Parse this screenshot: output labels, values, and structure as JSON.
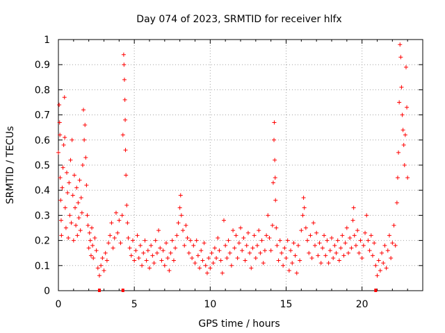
{
  "chart_data": {
    "type": "scatter",
    "title": "Day 074 of 2023, SRMTID for receiver hlfx",
    "xlabel": "GPS time / hours",
    "ylabel": "SRMTID / TECUs",
    "xlim": [
      0,
      24
    ],
    "ylim": [
      0,
      1
    ],
    "xticks": [
      0,
      5,
      10,
      15,
      20
    ],
    "xtick_labels": [
      "0",
      "5",
      "10",
      "15",
      "20"
    ],
    "yticks": [
      0,
      0.1,
      0.2,
      0.3,
      0.4,
      0.5,
      0.6,
      0.7,
      0.8,
      0.9,
      1
    ],
    "ytick_labels": [
      "0",
      "0.1",
      "0.2",
      "0.3",
      "0.4",
      "0.5",
      "0.6",
      "0.7",
      "0.8",
      "0.9",
      "1"
    ],
    "grid": true,
    "marker": "+",
    "color": "#ff0000",
    "series": [
      {
        "name": "SRMTID",
        "points": [
          [
            0.0,
            0.55
          ],
          [
            0.05,
            0.74
          ],
          [
            0.08,
            0.67
          ],
          [
            0.1,
            0.62
          ],
          [
            0.12,
            0.45
          ],
          [
            0.15,
            0.36
          ],
          [
            0.18,
            0.28
          ],
          [
            0.2,
            0.22
          ],
          [
            0.25,
            0.41
          ],
          [
            0.3,
            0.49
          ],
          [
            0.35,
            0.58
          ],
          [
            0.4,
            0.77
          ],
          [
            0.42,
            0.61
          ],
          [
            0.45,
            0.33
          ],
          [
            0.5,
            0.25
          ],
          [
            0.55,
            0.47
          ],
          [
            0.6,
            0.39
          ],
          [
            0.65,
            0.21
          ],
          [
            0.7,
            0.43
          ],
          [
            0.75,
            0.3
          ],
          [
            0.8,
            0.52
          ],
          [
            0.85,
            0.27
          ],
          [
            0.9,
            0.6
          ],
          [
            0.95,
            0.38
          ],
          [
            1.0,
            0.2
          ],
          [
            1.05,
            0.46
          ],
          [
            1.1,
            0.33
          ],
          [
            1.15,
            0.26
          ],
          [
            1.2,
            0.41
          ],
          [
            1.25,
            0.22
          ],
          [
            1.3,
            0.35
          ],
          [
            1.35,
            0.29
          ],
          [
            1.4,
            0.44
          ],
          [
            1.45,
            0.24
          ],
          [
            1.5,
            0.37
          ],
          [
            1.55,
            0.31
          ],
          [
            1.6,
            0.5
          ],
          [
            1.65,
            0.72
          ],
          [
            1.7,
            0.6
          ],
          [
            1.75,
            0.66
          ],
          [
            1.8,
            0.53
          ],
          [
            1.85,
            0.42
          ],
          [
            1.9,
            0.3
          ],
          [
            1.95,
            0.26
          ],
          [
            2.0,
            0.17
          ],
          [
            2.05,
            0.23
          ],
          [
            2.1,
            0.2
          ],
          [
            2.15,
            0.14
          ],
          [
            2.2,
            0.25
          ],
          [
            2.25,
            0.18
          ],
          [
            2.3,
            0.13
          ],
          [
            2.4,
            0.21
          ],
          [
            2.5,
            0.16
          ],
          [
            2.6,
            0.09
          ],
          [
            2.7,
            0.06
          ],
          [
            2.8,
            0.1
          ],
          [
            2.9,
            0.13
          ],
          [
            3.0,
            0.08
          ],
          [
            3.1,
            0.15
          ],
          [
            3.2,
            0.12
          ],
          [
            3.3,
            0.19
          ],
          [
            3.4,
            0.22
          ],
          [
            3.5,
            0.27
          ],
          [
            3.6,
            0.17
          ],
          [
            3.7,
            0.21
          ],
          [
            3.8,
            0.31
          ],
          [
            3.9,
            0.23
          ],
          [
            4.0,
            0.28
          ],
          [
            4.1,
            0.19
          ],
          [
            4.2,
            0.3
          ],
          [
            4.25,
            0.62
          ],
          [
            4.3,
            0.94
          ],
          [
            4.32,
            0.9
          ],
          [
            4.35,
            0.84
          ],
          [
            4.38,
            0.76
          ],
          [
            4.4,
            0.68
          ],
          [
            4.42,
            0.56
          ],
          [
            4.45,
            0.46
          ],
          [
            4.5,
            0.34
          ],
          [
            4.55,
            0.27
          ],
          [
            4.6,
            0.21
          ],
          [
            4.7,
            0.17
          ],
          [
            4.8,
            0.14
          ],
          [
            4.9,
            0.2
          ],
          [
            5.0,
            0.12
          ],
          [
            5.1,
            0.16
          ],
          [
            5.2,
            0.22
          ],
          [
            5.3,
            0.13
          ],
          [
            5.4,
            0.18
          ],
          [
            5.5,
            0.1
          ],
          [
            5.6,
            0.15
          ],
          [
            5.7,
            0.2
          ],
          [
            5.8,
            0.12
          ],
          [
            5.9,
            0.16
          ],
          [
            6.0,
            0.09
          ],
          [
            6.1,
            0.18
          ],
          [
            6.2,
            0.14
          ],
          [
            6.3,
            0.11
          ],
          [
            6.4,
            0.2
          ],
          [
            6.5,
            0.15
          ],
          [
            6.6,
            0.24
          ],
          [
            6.7,
            0.17
          ],
          [
            6.8,
            0.12
          ],
          [
            6.9,
            0.16
          ],
          [
            7.0,
            0.1
          ],
          [
            7.1,
            0.19
          ],
          [
            7.2,
            0.13
          ],
          [
            7.3,
            0.08
          ],
          [
            7.4,
            0.15
          ],
          [
            7.5,
            0.2
          ],
          [
            7.6,
            0.12
          ],
          [
            7.7,
            0.17
          ],
          [
            7.8,
            0.22
          ],
          [
            7.9,
            0.27
          ],
          [
            8.0,
            0.33
          ],
          [
            8.05,
            0.38
          ],
          [
            8.1,
            0.3
          ],
          [
            8.2,
            0.24
          ],
          [
            8.3,
            0.18
          ],
          [
            8.4,
            0.26
          ],
          [
            8.5,
            0.21
          ],
          [
            8.6,
            0.15
          ],
          [
            8.7,
            0.2
          ],
          [
            8.8,
            0.13
          ],
          [
            8.9,
            0.18
          ],
          [
            9.0,
            0.11
          ],
          [
            9.1,
            0.2
          ],
          [
            9.2,
            0.14
          ],
          [
            9.3,
            0.09
          ],
          [
            9.4,
            0.16
          ],
          [
            9.5,
            0.12
          ],
          [
            9.6,
            0.19
          ],
          [
            9.7,
            0.1
          ],
          [
            9.8,
            0.07
          ],
          [
            9.9,
            0.13
          ],
          [
            10.0,
            0.09
          ],
          [
            10.1,
            0.15
          ],
          [
            10.2,
            0.11
          ],
          [
            10.3,
            0.17
          ],
          [
            10.4,
            0.13
          ],
          [
            10.5,
            0.21
          ],
          [
            10.6,
            0.16
          ],
          [
            10.7,
            0.12
          ],
          [
            10.8,
            0.07
          ],
          [
            10.9,
            0.28
          ],
          [
            11.0,
            0.18
          ],
          [
            11.1,
            0.13
          ],
          [
            11.2,
            0.2
          ],
          [
            11.3,
            0.15
          ],
          [
            11.4,
            0.1
          ],
          [
            11.5,
            0.24
          ],
          [
            11.6,
            0.17
          ],
          [
            11.7,
            0.22
          ],
          [
            11.8,
            0.13
          ],
          [
            11.9,
            0.19
          ],
          [
            12.0,
            0.25
          ],
          [
            12.1,
            0.16
          ],
          [
            12.2,
            0.21
          ],
          [
            12.3,
            0.12
          ],
          [
            12.4,
            0.18
          ],
          [
            12.5,
            0.23
          ],
          [
            12.6,
            0.15
          ],
          [
            12.7,
            0.09
          ],
          [
            12.8,
            0.17
          ],
          [
            12.9,
            0.22
          ],
          [
            13.0,
            0.13
          ],
          [
            13.1,
            0.18
          ],
          [
            13.2,
            0.24
          ],
          [
            13.3,
            0.15
          ],
          [
            13.4,
            0.2
          ],
          [
            13.5,
            0.11
          ],
          [
            13.6,
            0.16
          ],
          [
            13.7,
            0.22
          ],
          [
            13.8,
            0.3
          ],
          [
            13.9,
            0.21
          ],
          [
            14.0,
            0.16
          ],
          [
            14.1,
            0.26
          ],
          [
            14.15,
            0.43
          ],
          [
            14.2,
            0.6
          ],
          [
            14.22,
            0.67
          ],
          [
            14.25,
            0.52
          ],
          [
            14.28,
            0.45
          ],
          [
            14.3,
            0.36
          ],
          [
            14.35,
            0.25
          ],
          [
            14.4,
            0.18
          ],
          [
            14.5,
            0.12
          ],
          [
            14.6,
            0.2
          ],
          [
            14.7,
            0.15
          ],
          [
            14.8,
            0.1
          ],
          [
            14.9,
            0.17
          ],
          [
            15.0,
            0.13
          ],
          [
            15.1,
            0.2
          ],
          [
            15.2,
            0.08
          ],
          [
            15.3,
            0.16
          ],
          [
            15.4,
            0.11
          ],
          [
            15.5,
            0.19
          ],
          [
            15.6,
            0.14
          ],
          [
            15.7,
            0.07
          ],
          [
            15.8,
            0.18
          ],
          [
            15.9,
            0.12
          ],
          [
            16.0,
            0.24
          ],
          [
            16.1,
            0.3
          ],
          [
            16.15,
            0.37
          ],
          [
            16.2,
            0.33
          ],
          [
            16.3,
            0.25
          ],
          [
            16.4,
            0.2
          ],
          [
            16.5,
            0.15
          ],
          [
            16.6,
            0.22
          ],
          [
            16.7,
            0.13
          ],
          [
            16.8,
            0.27
          ],
          [
            16.9,
            0.18
          ],
          [
            17.0,
            0.23
          ],
          [
            17.1,
            0.14
          ],
          [
            17.2,
            0.19
          ],
          [
            17.3,
            0.11
          ],
          [
            17.4,
            0.17
          ],
          [
            17.5,
            0.22
          ],
          [
            17.6,
            0.14
          ],
          [
            17.7,
            0.2
          ],
          [
            17.8,
            0.11
          ],
          [
            17.9,
            0.16
          ],
          [
            18.0,
            0.21
          ],
          [
            18.1,
            0.13
          ],
          [
            18.2,
            0.18
          ],
          [
            18.3,
            0.15
          ],
          [
            18.4,
            0.2
          ],
          [
            18.5,
            0.12
          ],
          [
            18.6,
            0.17
          ],
          [
            18.7,
            0.22
          ],
          [
            18.8,
            0.14
          ],
          [
            18.9,
            0.19
          ],
          [
            19.0,
            0.25
          ],
          [
            19.1,
            0.15
          ],
          [
            19.2,
            0.21
          ],
          [
            19.3,
            0.17
          ],
          [
            19.4,
            0.28
          ],
          [
            19.45,
            0.33
          ],
          [
            19.5,
            0.22
          ],
          [
            19.6,
            0.18
          ],
          [
            19.7,
            0.24
          ],
          [
            19.8,
            0.15
          ],
          [
            19.9,
            0.2
          ],
          [
            20.0,
            0.13
          ],
          [
            20.1,
            0.18
          ],
          [
            20.2,
            0.23
          ],
          [
            20.3,
            0.3
          ],
          [
            20.4,
            0.2
          ],
          [
            20.5,
            0.16
          ],
          [
            20.6,
            0.22
          ],
          [
            20.7,
            0.14
          ],
          [
            20.8,
            0.19
          ],
          [
            20.9,
            0.1
          ],
          [
            21.0,
            0.06
          ],
          [
            21.1,
            0.12
          ],
          [
            21.2,
            0.08
          ],
          [
            21.3,
            0.15
          ],
          [
            21.4,
            0.11
          ],
          [
            21.5,
            0.18
          ],
          [
            21.6,
            0.09
          ],
          [
            21.7,
            0.16
          ],
          [
            21.8,
            0.22
          ],
          [
            21.9,
            0.13
          ],
          [
            22.0,
            0.19
          ],
          [
            22.1,
            0.26
          ],
          [
            22.2,
            0.18
          ],
          [
            22.3,
            0.35
          ],
          [
            22.35,
            0.45
          ],
          [
            22.4,
            0.55
          ],
          [
            22.45,
            0.75
          ],
          [
            22.5,
            0.98
          ],
          [
            22.55,
            0.93
          ],
          [
            22.6,
            0.81
          ],
          [
            22.65,
            0.7
          ],
          [
            22.7,
            0.64
          ],
          [
            22.75,
            0.58
          ],
          [
            22.8,
            0.5
          ],
          [
            22.85,
            0.62
          ],
          [
            22.9,
            0.89
          ],
          [
            22.95,
            0.73
          ],
          [
            23.0,
            0.45
          ]
        ]
      }
    ],
    "gap_markers": [
      2.7,
      4.25,
      20.9
    ]
  }
}
